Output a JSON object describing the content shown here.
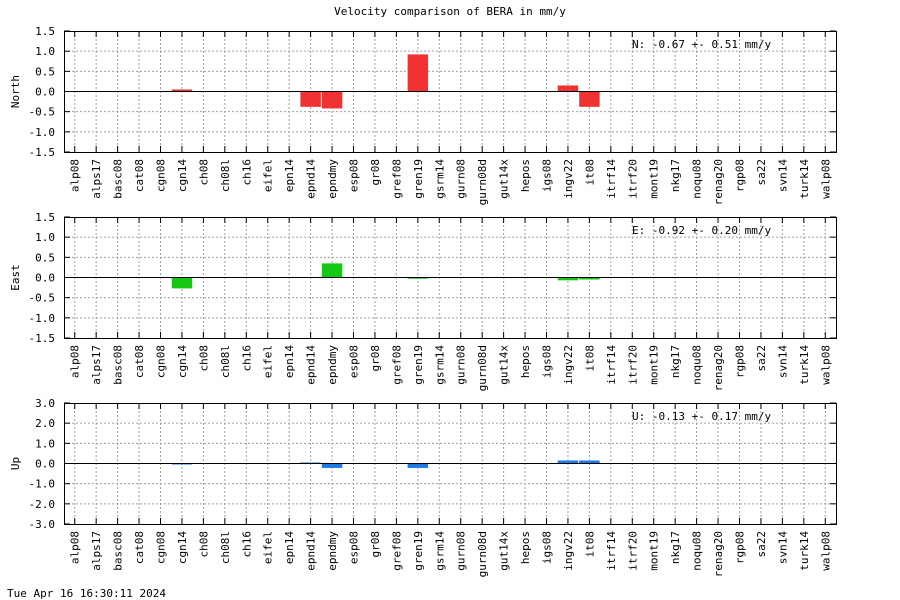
{
  "title": "Velocity comparison of BERA in mm/y",
  "footer": "Tue Apr 16 16:30:11 2024",
  "stations": [
    "alp08",
    "alps17",
    "basc08",
    "cat08",
    "cgn08",
    "cgn14",
    "ch08",
    "ch08l",
    "ch16",
    "eifel",
    "epn14",
    "epnd14",
    "epndmy",
    "esp08",
    "gr08",
    "gref08",
    "gren19",
    "gsrm14",
    "gurn08",
    "gurn08d",
    "gut14x",
    "hepos",
    "igs08",
    "ingv22",
    "it08",
    "itrf14",
    "itrf20",
    "mont19",
    "nkg17",
    "noqu08",
    "renag20",
    "rgp08",
    "sa22",
    "svn14",
    "turk14",
    "walp08"
  ],
  "chart_data": [
    {
      "type": "bar",
      "ylabel": "North",
      "ylim": [
        -1.5,
        1.5
      ],
      "yticks": [
        -1.5,
        -1.0,
        -0.5,
        0.0,
        0.5,
        1.0,
        1.5
      ],
      "ytick_labels": [
        "-1.5",
        "-1.0",
        "-0.5",
        "0.0",
        "0.5",
        "1.0",
        "1.5"
      ],
      "grid": true,
      "color": "#f03232",
      "annotation": "N:  -0.67 +-  0.51 mm/y",
      "values": [
        0,
        0,
        0,
        0,
        0,
        0.05,
        0,
        0,
        0,
        0,
        0,
        -0.38,
        -0.42,
        0,
        0,
        0,
        0.92,
        0,
        0,
        0,
        0,
        0,
        0,
        0.15,
        -0.38,
        0,
        0,
        0,
        0,
        0,
        0,
        0,
        0,
        0,
        0,
        0
      ]
    },
    {
      "type": "bar",
      "ylabel": "East",
      "ylim": [
        -1.5,
        1.5
      ],
      "yticks": [
        -1.5,
        -1.0,
        -0.5,
        0.0,
        0.5,
        1.0,
        1.5
      ],
      "ytick_labels": [
        "-1.5",
        "-1.0",
        "-0.5",
        "0.0",
        "0.5",
        "1.0",
        "1.5"
      ],
      "grid": true,
      "color": "#14c814",
      "annotation": "E:  -0.92 +-  0.20 mm/y",
      "values": [
        0,
        0,
        0,
        0,
        0,
        -0.27,
        0,
        0,
        0,
        0,
        0,
        0,
        0.35,
        0,
        0,
        0,
        -0.03,
        0,
        0,
        0,
        0,
        0,
        0,
        -0.07,
        -0.05,
        0,
        0,
        0,
        0,
        0,
        0,
        0,
        0,
        0,
        0,
        0
      ]
    },
    {
      "type": "bar",
      "ylabel": "Up",
      "ylim": [
        -3.0,
        3.0
      ],
      "yticks": [
        -3.0,
        -2.0,
        -1.0,
        0.0,
        1.0,
        2.0,
        3.0
      ],
      "ytick_labels": [
        "-3.0",
        "-2.0",
        "-1.0",
        "0.0",
        "1.0",
        "2.0",
        "3.0"
      ],
      "grid": true,
      "color": "#1e78e6",
      "annotation": "U:  -0.13 +-  0.17 mm/y",
      "values": [
        0,
        0,
        0,
        0,
        0,
        -0.05,
        0,
        0,
        0,
        0,
        0,
        0.05,
        -0.22,
        0,
        0,
        0,
        -0.22,
        0,
        0,
        0,
        0,
        0,
        0,
        0.15,
        0.15,
        0,
        0,
        0,
        0,
        0,
        0,
        0,
        0,
        0,
        0,
        0
      ]
    }
  ]
}
